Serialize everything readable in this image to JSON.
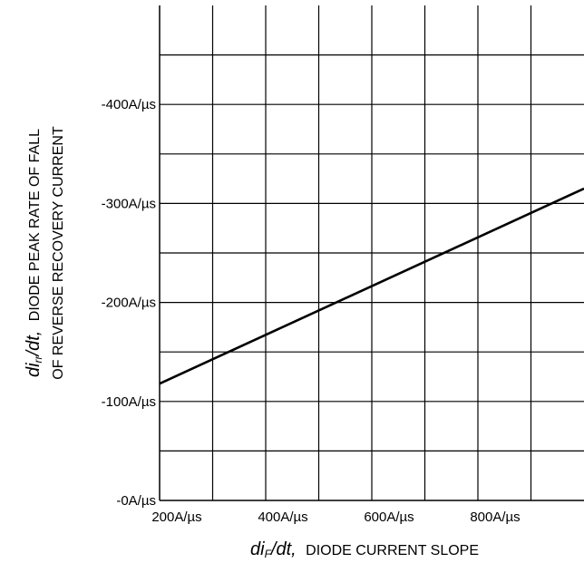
{
  "chart_data": {
    "type": "line",
    "xlabel": {
      "var": "di",
      "sub": "F",
      "tail": "/dt,",
      "text": "DIODE CURRENT SLOPE"
    },
    "ylabel": {
      "var": "di",
      "sub": "rr",
      "tail": "/dt,",
      "line1": "DIODE PEAK RATE OF FALL",
      "line2": "OF REVERSE RECOVERY CURRENT"
    },
    "xlim": [
      200,
      1000
    ],
    "ylim": [
      0,
      500
    ],
    "x_grid_step": 100,
    "y_grid_step": 50,
    "grid": true,
    "x_ticks": [
      {
        "value": 200,
        "label": "200A/µs"
      },
      {
        "value": 400,
        "label": "400A/µs"
      },
      {
        "value": 600,
        "label": "600A/µs"
      },
      {
        "value": 800,
        "label": "800A/µs"
      }
    ],
    "y_ticks": [
      {
        "value": 0,
        "label": "-0A/µs"
      },
      {
        "value": 100,
        "label": "-100A/µs"
      },
      {
        "value": 200,
        "label": "-200A/µs"
      },
      {
        "value": 300,
        "label": "-300A/µs"
      },
      {
        "value": 400,
        "label": "-400A/µs"
      }
    ],
    "series": [
      {
        "x": [
          200,
          1000
        ],
        "y": [
          118,
          315
        ],
        "color": "#000000"
      }
    ]
  }
}
